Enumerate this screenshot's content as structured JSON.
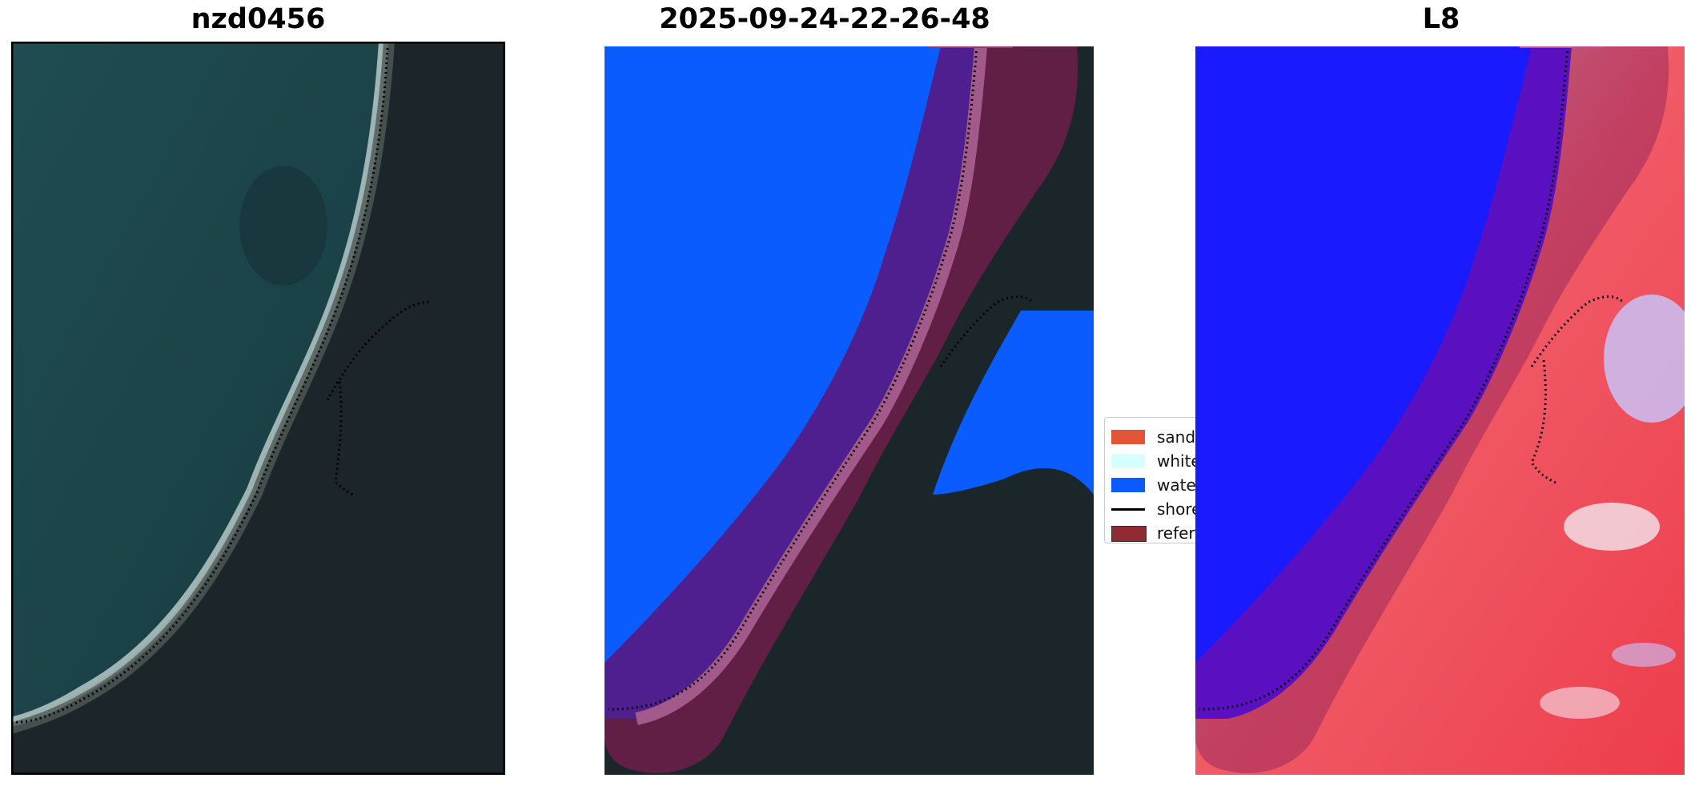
{
  "panels": [
    {
      "title": "nzd0456"
    },
    {
      "title": "2025-09-24-22-26-48"
    },
    {
      "title": "L8"
    }
  ],
  "legend": {
    "items": [
      {
        "label": "sand",
        "color": "#e2553a",
        "kind": "patch"
      },
      {
        "label": "white-water",
        "color": "#d6fffd",
        "kind": "patch"
      },
      {
        "label": "water",
        "color": "#0b5cff",
        "kind": "patch"
      },
      {
        "label": "shoreline",
        "color": "#000000",
        "kind": "line"
      },
      {
        "label": "reference shoreline buffer",
        "color": "#8f2b33",
        "kind": "patch"
      }
    ]
  },
  "colors": {
    "sea": "#1e4348",
    "land": "#1b262b",
    "water_class": "#0b5cff",
    "buffer": "#6d1f4a",
    "index_blue": "#1a1aff",
    "index_red": "#ea3a4a",
    "index_white": "#f4e6ee"
  }
}
